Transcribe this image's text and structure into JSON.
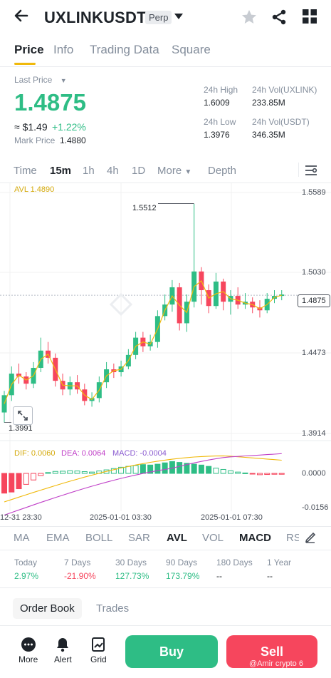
{
  "header": {
    "back_icon": "arrow-left-icon",
    "symbol": "UXLINKUSDT",
    "badge": "Perp",
    "dropdown_icon": "caret-down-icon"
  },
  "tabs": [
    "Price",
    "Info",
    "Trading Data",
    "Square"
  ],
  "price": {
    "last_label": "Last Price",
    "last_value": "1.4875",
    "usd_value": "≈ $1.49",
    "change": "+1.22%",
    "mark_label": "Mark Price",
    "mark_value": "1.4880"
  },
  "stats": {
    "high_label": "24h High",
    "high_value": "1.6009",
    "low_label": "24h Low",
    "low_value": "1.3976",
    "vol_base_label": "24h Vol(UXLINK)",
    "vol_base_value": "233.85M",
    "vol_quote_label": "24h Vol(USDT)",
    "vol_quote_value": "346.35M"
  },
  "intervals": [
    "Time",
    "15m",
    "1h",
    "4h",
    "1D",
    "More",
    "Depth"
  ],
  "chart": {
    "avl_label": "AVL 1.4890",
    "price_ticks": [
      "1.5589",
      "1.5030",
      "1.4473",
      "1.3914"
    ],
    "current": "1.4875",
    "max_label": "1.5512",
    "min_label": "1.3991",
    "dif": "DIF: 0.0060",
    "dea": "DEA: 0.0064",
    "macd": "MACD: -0.0004",
    "macd_ticks": [
      "0.0000",
      "-0.0156"
    ],
    "time_labels": [
      "12-31 23:30",
      "2025-01-01 03:30",
      "2025-01-01 07:30"
    ],
    "colors": {
      "up": "#2ebd85",
      "down": "#f6465d",
      "avl": "#f0b90b",
      "dea": "#c040c8"
    }
  },
  "indicators": [
    "MA",
    "EMA",
    "BOLL",
    "SAR",
    "AVL",
    "VOL",
    "MACD",
    "RSI"
  ],
  "performance": [
    {
      "label": "Today",
      "value": "2.97%",
      "tone": "green"
    },
    {
      "label": "7 Days",
      "value": "-21.90%",
      "tone": "red"
    },
    {
      "label": "30 Days",
      "value": "127.73%",
      "tone": "green"
    },
    {
      "label": "90 Days",
      "value": "173.79%",
      "tone": "green"
    },
    {
      "label": "180 Days",
      "value": "--",
      "tone": "dark"
    },
    {
      "label": "1 Year",
      "value": "--",
      "tone": "dark"
    }
  ],
  "orderbook": {
    "tab1": "Order Book",
    "tab2": "Trades"
  },
  "footer": {
    "more": "More",
    "alert": "Alert",
    "grid": "Grid",
    "buy": "Buy",
    "sell": "Sell"
  },
  "watermark": "@Amir crypto 6",
  "chart_data": {
    "type": "candlestick",
    "y_range": [
      1.3914,
      1.5589
    ],
    "candles": [
      {
        "o": 1.406,
        "c": 1.418,
        "h": 1.421,
        "l": 1.399
      },
      {
        "o": 1.418,
        "c": 1.433,
        "h": 1.438,
        "l": 1.414
      },
      {
        "o": 1.433,
        "c": 1.431,
        "h": 1.44,
        "l": 1.426
      },
      {
        "o": 1.431,
        "c": 1.426,
        "h": 1.434,
        "l": 1.422
      },
      {
        "o": 1.426,
        "c": 1.437,
        "h": 1.441,
        "l": 1.423
      },
      {
        "o": 1.437,
        "c": 1.449,
        "h": 1.458,
        "l": 1.434
      },
      {
        "o": 1.449,
        "c": 1.444,
        "h": 1.455,
        "l": 1.44
      },
      {
        "o": 1.444,
        "c": 1.428,
        "h": 1.447,
        "l": 1.424
      },
      {
        "o": 1.428,
        "c": 1.422,
        "h": 1.433,
        "l": 1.418
      },
      {
        "o": 1.422,
        "c": 1.427,
        "h": 1.431,
        "l": 1.418
      },
      {
        "o": 1.427,
        "c": 1.422,
        "h": 1.432,
        "l": 1.419
      },
      {
        "o": 1.422,
        "c": 1.414,
        "h": 1.426,
        "l": 1.411
      },
      {
        "o": 1.414,
        "c": 1.416,
        "h": 1.42,
        "l": 1.41
      },
      {
        "o": 1.416,
        "c": 1.427,
        "h": 1.431,
        "l": 1.413
      },
      {
        "o": 1.427,
        "c": 1.436,
        "h": 1.441,
        "l": 1.423
      },
      {
        "o": 1.436,
        "c": 1.434,
        "h": 1.44,
        "l": 1.43
      },
      {
        "o": 1.434,
        "c": 1.438,
        "h": 1.442,
        "l": 1.431
      },
      {
        "o": 1.438,
        "c": 1.446,
        "h": 1.45,
        "l": 1.436
      },
      {
        "o": 1.446,
        "c": 1.458,
        "h": 1.462,
        "l": 1.443
      },
      {
        "o": 1.458,
        "c": 1.452,
        "h": 1.462,
        "l": 1.448
      },
      {
        "o": 1.452,
        "c": 1.455,
        "h": 1.46,
        "l": 1.449
      },
      {
        "o": 1.455,
        "c": 1.473,
        "h": 1.477,
        "l": 1.451
      },
      {
        "o": 1.473,
        "c": 1.481,
        "h": 1.488,
        "l": 1.47
      },
      {
        "o": 1.481,
        "c": 1.493,
        "h": 1.498,
        "l": 1.476
      },
      {
        "o": 1.493,
        "c": 1.468,
        "h": 1.496,
        "l": 1.463
      },
      {
        "o": 1.468,
        "c": 1.483,
        "h": 1.488,
        "l": 1.462
      },
      {
        "o": 1.483,
        "c": 1.504,
        "h": 1.551,
        "l": 1.479
      },
      {
        "o": 1.504,
        "c": 1.491,
        "h": 1.507,
        "l": 1.481
      },
      {
        "o": 1.491,
        "c": 1.48,
        "h": 1.495,
        "l": 1.475
      },
      {
        "o": 1.48,
        "c": 1.497,
        "h": 1.503,
        "l": 1.478
      },
      {
        "o": 1.497,
        "c": 1.483,
        "h": 1.499,
        "l": 1.477
      },
      {
        "o": 1.483,
        "c": 1.487,
        "h": 1.491,
        "l": 1.474
      },
      {
        "o": 1.487,
        "c": 1.481,
        "h": 1.493,
        "l": 1.478
      },
      {
        "o": 1.481,
        "c": 1.483,
        "h": 1.489,
        "l": 1.478
      },
      {
        "o": 1.483,
        "c": 1.479,
        "h": 1.486,
        "l": 1.475
      },
      {
        "o": 1.479,
        "c": 1.477,
        "h": 1.484,
        "l": 1.472
      },
      {
        "o": 1.477,
        "c": 1.485,
        "h": 1.489,
        "l": 1.475
      },
      {
        "o": 1.485,
        "c": 1.487,
        "h": 1.491,
        "l": 1.482
      },
      {
        "o": 1.487,
        "c": 1.488,
        "h": 1.491,
        "l": 1.484
      }
    ],
    "macd_hist": [
      -0.009,
      -0.0085,
      -0.007,
      -0.005,
      -0.003,
      -0.001,
      0.0004,
      0.0009,
      0.001,
      0.0012,
      0.0011,
      0.0008,
      0.0006,
      0.0011,
      0.0016,
      0.0022,
      0.0028,
      0.0032,
      0.0036,
      0.004,
      0.0038,
      0.0042,
      0.0048,
      0.0054,
      0.005,
      0.0046,
      0.0042,
      0.0038,
      0.0032,
      0.0024,
      0.0018,
      0.0012,
      0.0006,
      0.0002,
      -0.0003,
      -0.0006,
      -0.0005,
      -0.0004,
      -0.0004
    ]
  }
}
